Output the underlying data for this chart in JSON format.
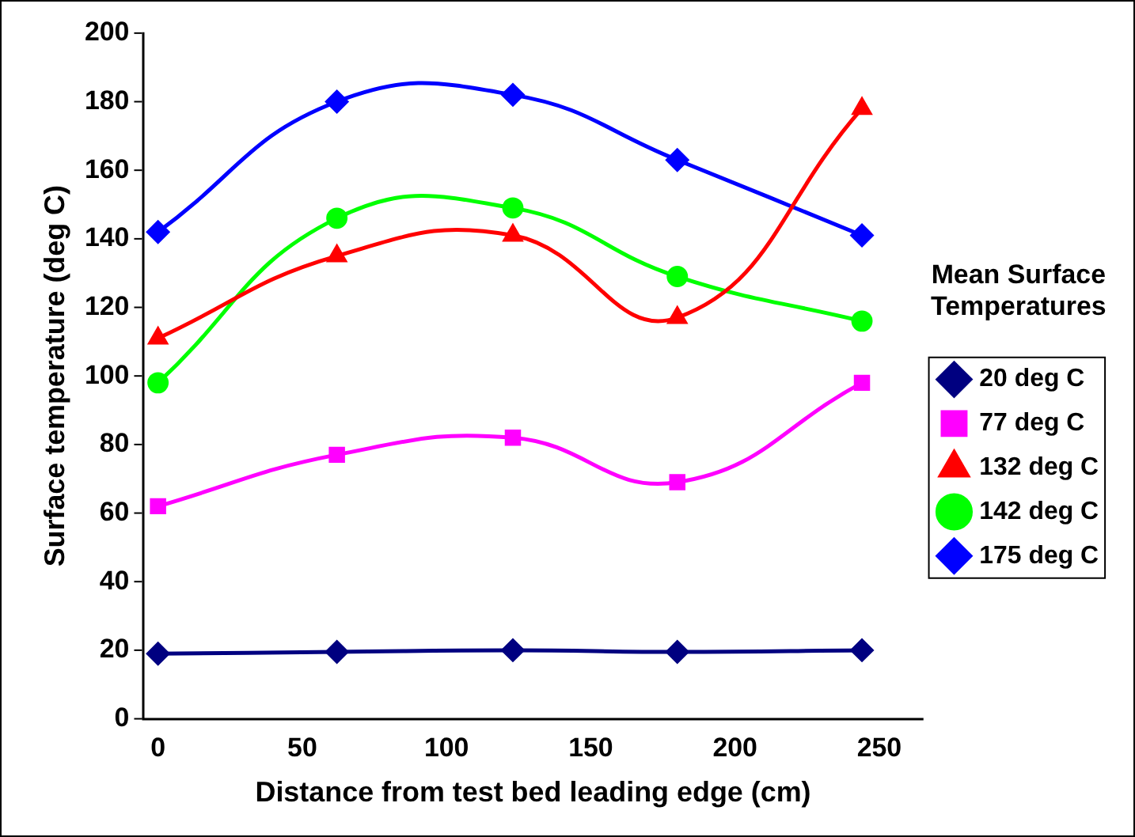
{
  "chart_data": {
    "type": "line",
    "xlabel": "Distance from test bed leading edge (cm)",
    "ylabel": "Surface temperature (deg C)",
    "legend_title": "Mean Surface Temperatures",
    "legend": "right",
    "grid": false,
    "x": [
      0,
      62,
      123,
      180,
      244
    ],
    "xlim": [
      -5,
      265
    ],
    "xticks": [
      0,
      50,
      100,
      150,
      200,
      250
    ],
    "ylim": [
      0,
      200
    ],
    "yticks": [
      0,
      20,
      40,
      60,
      80,
      100,
      120,
      140,
      160,
      180,
      200
    ],
    "series": [
      {
        "name": "20 deg C",
        "color": "#000080",
        "marker": "diamond",
        "values": [
          19,
          19.5,
          20,
          19.5,
          20
        ]
      },
      {
        "name": "77 deg C",
        "color": "#ff00ff",
        "marker": "square",
        "values": [
          62,
          77,
          82,
          69,
          98
        ]
      },
      {
        "name": "132 deg C",
        "color": "#ff0000",
        "marker": "triangle",
        "values": [
          111,
          135,
          141,
          117,
          178
        ]
      },
      {
        "name": "142 deg C",
        "color": "#00ff00",
        "marker": "circle",
        "values": [
          98,
          146,
          149,
          129,
          116
        ]
      },
      {
        "name": "175 deg C",
        "color": "#0000ff",
        "marker": "diamond",
        "values": [
          142,
          180,
          182,
          163,
          141
        ]
      }
    ]
  }
}
